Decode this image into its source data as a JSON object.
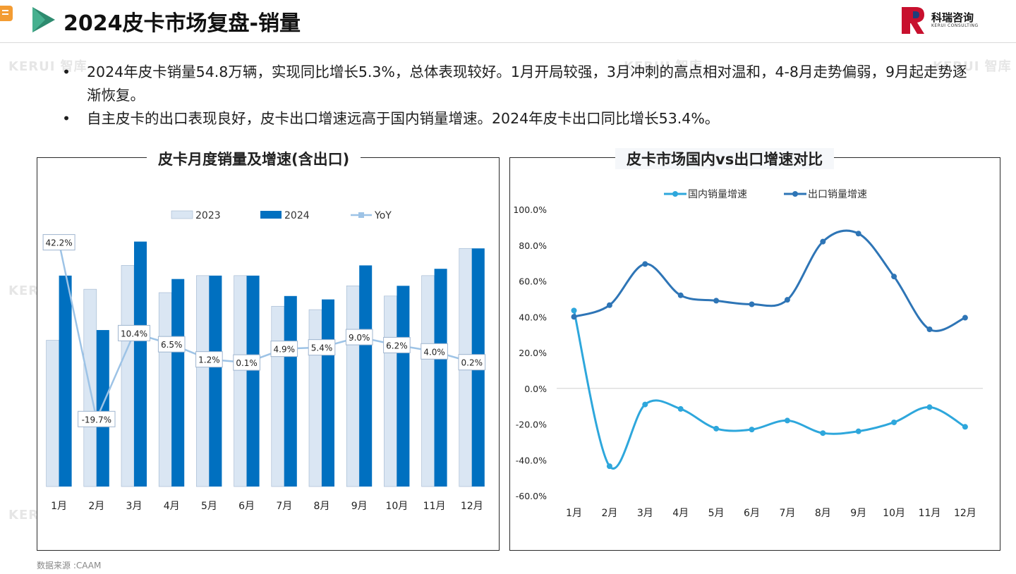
{
  "header": {
    "title": "2024皮卡市场复盘-销量",
    "logo_text": "科瑞咨询",
    "logo_sub": "KERUI CONSULTING"
  },
  "bullets": [
    {
      "marker": "•",
      "text": "2024年皮卡销量54.8万辆，实现同比增长5.3%，总体表现较好。1月开局较强，3月冲刺的高点相对温和，4-8月走势偏弱，9月起走势逐渐恢复。"
    },
    {
      "marker": "•",
      "text": "自主皮卡的出口表现良好，皮卡出口增速远高于国内销量增速。2024年皮卡出口同比增长53.4%。"
    }
  ],
  "watermark": "KERUI 智库",
  "footer": {
    "source": "数据来源 :CAAM"
  },
  "chart_data": [
    {
      "type": "bar",
      "title": "皮卡月度销量及增速(含出口)",
      "categories": [
        "1月",
        "2月",
        "3月",
        "4月",
        "5月",
        "6月",
        "7月",
        "8月",
        "9月",
        "10月",
        "11月",
        "12月"
      ],
      "series": [
        {
          "name": "2023",
          "values": [
            43,
            58,
            65,
            57,
            62,
            62,
            53,
            52,
            59,
            56,
            62,
            70
          ],
          "color": "#dae6f3"
        },
        {
          "name": "2024",
          "values": [
            62,
            46,
            72,
            61,
            62,
            62,
            56,
            55,
            65,
            59,
            64,
            70
          ],
          "color": "#0070c0"
        }
      ],
      "line_series": {
        "name": "YoY",
        "values": [
          42.2,
          -19.7,
          10.4,
          6.5,
          1.2,
          0.1,
          4.9,
          5.4,
          9.0,
          6.2,
          4.0,
          0.2
        ],
        "labels": [
          "42.2%",
          "-19.7%",
          "10.4%",
          "6.5%",
          "1.2%",
          "0.1%",
          "4.9%",
          "5.4%",
          "9.0%",
          "6.2%",
          "4.0%",
          "0.2%"
        ],
        "color": "#9dc3e6"
      },
      "ylim": [
        0,
        80
      ],
      "yoy_lim": [
        -30,
        50
      ],
      "legend": "top"
    },
    {
      "type": "line",
      "title": "皮卡市场国内vs出口增速对比",
      "categories": [
        "1月",
        "2月",
        "3月",
        "4月",
        "5月",
        "6月",
        "7月",
        "8月",
        "9月",
        "10月",
        "11月",
        "12月"
      ],
      "series": [
        {
          "name": "国内销量增速",
          "values": [
            43.5,
            -43.5,
            -9.0,
            -11.5,
            -22.5,
            -23.0,
            -18.0,
            -25.0,
            -24.0,
            -19.0,
            -10.5,
            -21.5
          ],
          "color": "#2ea7dc"
        },
        {
          "name": "出口销量增速",
          "values": [
            40.0,
            46.5,
            69.5,
            52.0,
            49.0,
            47.0,
            49.5,
            82.0,
            86.5,
            62.5,
            33.0,
            39.5
          ],
          "color": "#2e75b6"
        }
      ],
      "yticks": [
        "100.0%",
        "80.0%",
        "60.0%",
        "40.0%",
        "20.0%",
        "0.0%",
        "-20.0%",
        "-40.0%",
        "-60.0%"
      ],
      "ylim": [
        -60,
        100
      ],
      "legend": "top"
    }
  ]
}
